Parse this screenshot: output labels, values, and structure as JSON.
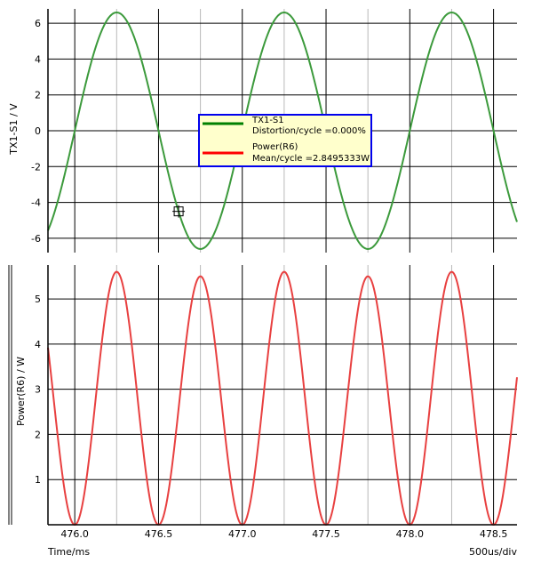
{
  "chart_data": [
    {
      "type": "line",
      "ylabel": "TX1-S1 / V",
      "ylim": [
        -6.8,
        6.8
      ],
      "y_ticks": [
        -6,
        -4,
        -2,
        0,
        2,
        4,
        6
      ],
      "xlim": [
        475.84,
        478.64
      ],
      "series": [
        {
          "name": "TX1-S1",
          "color": "#3c9a3c",
          "description": "sine",
          "amplitude": 6.6,
          "period_ms": 1.0,
          "peak_at_ms": 476.25
        }
      ],
      "legend": {
        "placement": "center",
        "entries": [
          {
            "name": "TX1-S1",
            "detail": "Distortion/cycle =0.000%",
            "color": "#008000"
          },
          {
            "name": "Power(R6)",
            "detail": "Mean/cycle =2.8495333W",
            "color": "#ff0000"
          }
        ]
      },
      "grid": true,
      "cursor": {
        "x": 476.62,
        "y": -4.5
      }
    },
    {
      "type": "line",
      "ylabel": "Power(R6) / W",
      "ylim": [
        0,
        5.75
      ],
      "y_ticks": [
        1,
        2,
        3,
        4,
        5
      ],
      "xlim": [
        475.84,
        478.64
      ],
      "x_ticks": [
        476.0,
        476.5,
        477.0,
        477.5,
        478.0,
        478.5
      ],
      "x_tick_labels": [
        "476.0",
        "476.5",
        "477.0",
        "477.5",
        "478.0",
        "478.5"
      ],
      "xlabel": "Time/ms",
      "x_scale_note": "500us/div",
      "series": [
        {
          "name": "Power(R6)",
          "color": "#e84040",
          "peaks": [
            {
              "x": 476.25,
              "y": 5.6
            },
            {
              "x": 476.75,
              "y": 5.5
            },
            {
              "x": 477.25,
              "y": 5.6
            },
            {
              "x": 477.75,
              "y": 5.5
            },
            {
              "x": 478.25,
              "y": 5.6
            }
          ],
          "minima": [
            {
              "x": 476.0,
              "y": 0
            },
            {
              "x": 476.5,
              "y": 0
            },
            {
              "x": 477.0,
              "y": 0
            },
            {
              "x": 477.5,
              "y": 0
            },
            {
              "x": 478.0,
              "y": 0
            },
            {
              "x": 478.5,
              "y": 0
            }
          ]
        }
      ],
      "grid": true
    }
  ]
}
